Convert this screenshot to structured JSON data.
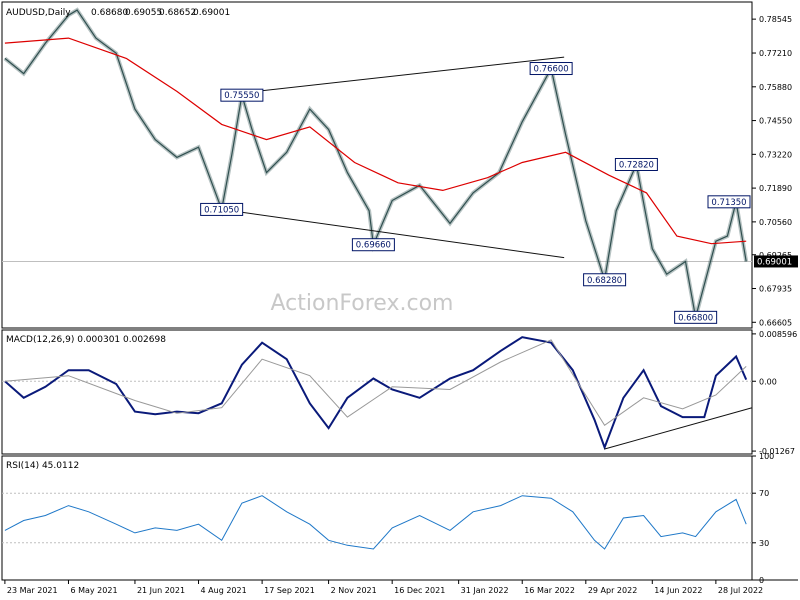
{
  "chart_data": [
    {
      "type": "ohlc",
      "panel": "price",
      "title": "AUDUSD,Daily",
      "ohlc": [
        "0.68680",
        "0.69055",
        "0.68652",
        "0.69001"
      ],
      "yticks": [
        "0.78545",
        "0.77210",
        "0.75880",
        "0.74550",
        "0.73220",
        "0.71890",
        "0.70560",
        "0.69265",
        "0.67935",
        "0.66605"
      ],
      "current_price_label": "0.69001",
      "current_price": 0.69001,
      "ylim": [
        0.6638,
        0.7922
      ],
      "watermark": "ActionForex.com",
      "annotations": [
        {
          "label": "0.71050",
          "value": 0.7105,
          "date": "2021-08-20"
        },
        {
          "label": "0.75550",
          "value": 0.7555,
          "date": "2021-09-03"
        },
        {
          "label": "0.69660",
          "value": 0.6966,
          "date": "2021-12-03"
        },
        {
          "label": "0.76600",
          "value": 0.766,
          "date": "2022-04-05"
        },
        {
          "label": "0.68280",
          "value": 0.6828,
          "date": "2022-05-12"
        },
        {
          "label": "0.72820",
          "value": 0.7282,
          "date": "2022-06-03"
        },
        {
          "label": "0.66800",
          "value": 0.668,
          "date": "2022-07-14"
        },
        {
          "label": "0.71350",
          "value": 0.7135,
          "date": "2022-08-11"
        }
      ],
      "trendlines": [
        {
          "from": {
            "date": "2021-08-20",
            "value": 0.7555
          },
          "to": {
            "date": "2022-04-14",
            "value": 0.7705
          }
        },
        {
          "from": {
            "date": "2021-08-20",
            "value": 0.7105
          },
          "to": {
            "date": "2022-04-14",
            "value": 0.6915
          }
        }
      ],
      "series": [
        {
          "role": "price",
          "color": "#2f4f4f",
          "x": [
            "2021-03-23",
            "2021-04-05",
            "2021-04-20",
            "2021-05-06",
            "2021-05-12",
            "2021-05-25",
            "2021-06-08",
            "2021-06-21",
            "2021-07-05",
            "2021-07-20",
            "2021-08-04",
            "2021-08-20",
            "2021-08-27",
            "2021-09-03",
            "2021-09-10",
            "2021-09-20",
            "2021-10-04",
            "2021-10-20",
            "2021-11-02",
            "2021-11-15",
            "2021-11-30",
            "2021-12-03",
            "2021-12-16",
            "2022-01-04",
            "2022-01-25",
            "2022-02-10",
            "2022-02-28",
            "2022-03-16",
            "2022-04-05",
            "2022-04-15",
            "2022-04-29",
            "2022-05-12",
            "2022-05-20",
            "2022-06-03",
            "2022-06-14",
            "2022-06-24",
            "2022-07-07",
            "2022-07-14",
            "2022-07-28",
            "2022-08-05",
            "2022-08-11",
            "2022-08-18"
          ],
          "values": [
            0.77,
            0.764,
            0.776,
            0.787,
            0.789,
            0.778,
            0.772,
            0.75,
            0.738,
            0.731,
            0.735,
            0.7105,
            0.732,
            0.7555,
            0.742,
            0.725,
            0.733,
            0.75,
            0.742,
            0.725,
            0.71,
            0.6966,
            0.714,
            0.72,
            0.705,
            0.717,
            0.725,
            0.745,
            0.766,
            0.74,
            0.706,
            0.6828,
            0.71,
            0.7282,
            0.695,
            0.685,
            0.69,
            0.668,
            0.698,
            0.7,
            0.7135,
            0.69
          ]
        },
        {
          "role": "moving_average",
          "color": "#dd0000",
          "x": [
            "2021-03-23",
            "2021-05-06",
            "2021-06-15",
            "2021-07-20",
            "2021-08-20",
            "2021-09-20",
            "2021-10-20",
            "2021-11-20",
            "2021-12-20",
            "2022-01-20",
            "2022-02-20",
            "2022-03-16",
            "2022-04-15",
            "2022-05-15",
            "2022-06-10",
            "2022-07-01",
            "2022-07-25",
            "2022-08-18"
          ],
          "values": [
            0.776,
            0.778,
            0.77,
            0.757,
            0.744,
            0.738,
            0.743,
            0.729,
            0.721,
            0.718,
            0.723,
            0.729,
            0.733,
            0.724,
            0.717,
            0.7,
            0.697,
            0.698
          ]
        }
      ],
      "grid": "horizontal line at current price"
    },
    {
      "type": "line",
      "panel": "macd",
      "title": "MACD(12,26,9) 0.000301 0.002698",
      "yticks": [
        "0.008596",
        "0.00",
        "-0.01267"
      ],
      "ylim": [
        -0.0132,
        0.0093
      ],
      "trendlines": [
        {
          "from": {
            "date": "2022-05-12",
            "value": -0.0123
          },
          "to": {
            "date": "2022-08-22",
            "value": -0.0048
          }
        }
      ],
      "series": [
        {
          "role": "macd",
          "color": "#0a1a7a",
          "x": [
            "2021-03-23",
            "2021-04-05",
            "2021-04-20",
            "2021-05-06",
            "2021-05-20",
            "2021-06-08",
            "2021-06-21",
            "2021-07-05",
            "2021-07-20",
            "2021-08-04",
            "2021-08-20",
            "2021-09-03",
            "2021-09-17",
            "2021-10-04",
            "2021-10-20",
            "2021-11-02",
            "2021-11-15",
            "2021-12-03",
            "2021-12-16",
            "2022-01-04",
            "2022-01-25",
            "2022-02-10",
            "2022-03-01",
            "2022-03-16",
            "2022-04-05",
            "2022-04-20",
            "2022-05-05",
            "2022-05-12",
            "2022-05-25",
            "2022-06-08",
            "2022-06-20",
            "2022-07-05",
            "2022-07-20",
            "2022-07-28",
            "2022-08-11",
            "2022-08-18"
          ],
          "values": [
            0.0,
            -0.003,
            -0.001,
            0.002,
            0.002,
            -0.0005,
            -0.0055,
            -0.006,
            -0.0055,
            -0.0058,
            -0.004,
            0.003,
            0.007,
            0.004,
            -0.004,
            -0.0085,
            -0.003,
            0.0005,
            -0.0015,
            -0.003,
            0.0005,
            0.002,
            0.0055,
            0.008,
            0.007,
            0.002,
            -0.007,
            -0.012,
            -0.003,
            0.002,
            -0.0045,
            -0.0065,
            -0.0065,
            0.001,
            0.0045,
            0.0003
          ]
        },
        {
          "role": "signal",
          "color": "#999999",
          "x": [
            "2021-03-23",
            "2021-05-06",
            "2021-06-21",
            "2021-07-20",
            "2021-08-20",
            "2021-09-17",
            "2021-10-20",
            "2021-11-15",
            "2021-12-16",
            "2022-01-25",
            "2022-03-01",
            "2022-04-05",
            "2022-05-12",
            "2022-06-08",
            "2022-07-05",
            "2022-07-28",
            "2022-08-18"
          ],
          "values": [
            0.0,
            0.001,
            -0.0035,
            -0.0058,
            -0.0048,
            0.004,
            0.001,
            -0.0065,
            -0.001,
            -0.0015,
            0.0035,
            0.0075,
            -0.008,
            -0.003,
            -0.005,
            -0.0025,
            0.0027
          ]
        }
      ]
    },
    {
      "type": "line",
      "panel": "rsi",
      "title": "RSI(14) 45.0112",
      "yticks": [
        "100",
        "70",
        "30",
        "0"
      ],
      "ylim": [
        0,
        100
      ],
      "levels": [
        70,
        30
      ],
      "series": [
        {
          "role": "rsi",
          "color": "#1f78c8",
          "x": [
            "2021-03-23",
            "2021-04-05",
            "2021-04-20",
            "2021-05-06",
            "2021-05-20",
            "2021-06-08",
            "2021-06-21",
            "2021-07-05",
            "2021-07-20",
            "2021-08-04",
            "2021-08-20",
            "2021-09-03",
            "2021-09-17",
            "2021-10-04",
            "2021-10-20",
            "2021-11-02",
            "2021-11-15",
            "2021-12-03",
            "2021-12-16",
            "2022-01-04",
            "2022-01-25",
            "2022-02-10",
            "2022-03-01",
            "2022-03-16",
            "2022-04-05",
            "2022-04-20",
            "2022-05-05",
            "2022-05-12",
            "2022-05-25",
            "2022-06-08",
            "2022-06-20",
            "2022-07-05",
            "2022-07-14",
            "2022-07-28",
            "2022-08-11",
            "2022-08-18"
          ],
          "values": [
            40,
            48,
            52,
            60,
            55,
            45,
            38,
            42,
            40,
            45,
            32,
            62,
            68,
            55,
            45,
            32,
            28,
            25,
            42,
            52,
            40,
            55,
            60,
            68,
            66,
            55,
            32,
            25,
            50,
            52,
            35,
            38,
            35,
            55,
            65,
            45
          ]
        }
      ]
    }
  ],
  "x_axis": {
    "tick_labels": [
      {
        "label": "23 Mar 2021",
        "date": "2021-03-23"
      },
      {
        "label": "6 May 2021",
        "date": "2021-05-06"
      },
      {
        "label": "21 Jun 2021",
        "date": "2021-06-21"
      },
      {
        "label": "4 Aug 2021",
        "date": "2021-08-04"
      },
      {
        "label": "17 Sep 2021",
        "date": "2021-09-17"
      },
      {
        "label": "2 Nov 2021",
        "date": "2021-11-02"
      },
      {
        "label": "16 Dec 2021",
        "date": "2021-12-16"
      },
      {
        "label": "31 Jan 2022",
        "date": "2022-01-31"
      },
      {
        "label": "16 Mar 2022",
        "date": "2022-03-16"
      },
      {
        "label": "29 Apr 2022",
        "date": "2022-04-29"
      },
      {
        "label": "14 Jun 2022",
        "date": "2022-06-14"
      },
      {
        "label": "28 Jul 2022",
        "date": "2022-07-28"
      }
    ],
    "xlim": [
      "2021-03-21",
      "2022-08-22"
    ]
  },
  "colors": {
    "price_line": "#2f4f4f",
    "moving_average": "#dd0000",
    "macd_line": "#0a1a7a",
    "signal_line": "#999999",
    "rsi_line": "#1f78c8",
    "annotation_box": "#001466",
    "trendline": "#111111"
  }
}
